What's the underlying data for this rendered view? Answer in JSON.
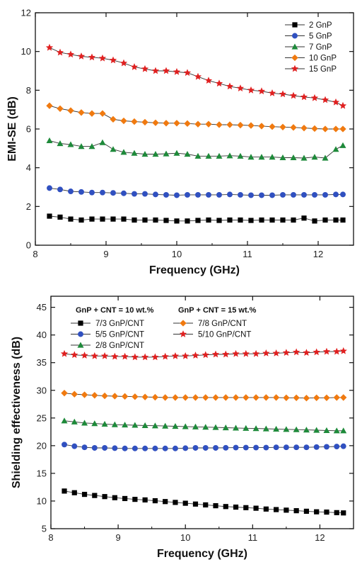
{
  "chart_data": [
    {
      "type": "line",
      "title": "",
      "xlabel": "Frequency (GHz)",
      "ylabel": "EMI-SE (dB)",
      "xlim": [
        8,
        12.5
      ],
      "ylim": [
        0,
        12
      ],
      "x_ticks": [
        "8",
        "9",
        "10",
        "11",
        "12"
      ],
      "y_ticks": [
        "0",
        "2",
        "4",
        "6",
        "8",
        "10",
        "12"
      ],
      "legend_position": "top-right",
      "grid": false,
      "x": [
        8.2,
        8.35,
        8.5,
        8.65,
        8.8,
        8.95,
        9.1,
        9.25,
        9.4,
        9.55,
        9.7,
        9.85,
        10.0,
        10.15,
        10.3,
        10.45,
        10.6,
        10.75,
        10.9,
        11.05,
        11.2,
        11.35,
        11.5,
        11.65,
        11.8,
        11.95,
        12.1,
        12.25,
        12.35
      ],
      "series": [
        {
          "name": "2 GnP",
          "marker": "square",
          "color": "#000000",
          "values": [
            1.5,
            1.45,
            1.35,
            1.3,
            1.35,
            1.35,
            1.35,
            1.35,
            1.3,
            1.3,
            1.3,
            1.28,
            1.25,
            1.25,
            1.28,
            1.3,
            1.28,
            1.3,
            1.3,
            1.28,
            1.3,
            1.3,
            1.3,
            1.3,
            1.4,
            1.25,
            1.3,
            1.3,
            1.3
          ]
        },
        {
          "name": "5 GnP",
          "marker": "circle",
          "color": "#3050c0",
          "values": [
            2.95,
            2.88,
            2.78,
            2.75,
            2.72,
            2.72,
            2.7,
            2.68,
            2.65,
            2.65,
            2.62,
            2.6,
            2.58,
            2.6,
            2.6,
            2.6,
            2.6,
            2.62,
            2.6,
            2.58,
            2.58,
            2.58,
            2.6,
            2.6,
            2.6,
            2.6,
            2.6,
            2.62,
            2.62
          ]
        },
        {
          "name": "7 GnP",
          "marker": "triangle",
          "color": "#1e8a3a",
          "values": [
            5.4,
            5.25,
            5.2,
            5.1,
            5.1,
            5.3,
            4.95,
            4.8,
            4.75,
            4.7,
            4.7,
            4.72,
            4.75,
            4.7,
            4.6,
            4.6,
            4.6,
            4.62,
            4.6,
            4.55,
            4.55,
            4.55,
            4.52,
            4.52,
            4.5,
            4.55,
            4.5,
            4.95,
            5.15
          ]
        },
        {
          "name": "10 GnP",
          "marker": "diamond",
          "color": "#f07a10",
          "values": [
            7.2,
            7.05,
            6.95,
            6.85,
            6.8,
            6.8,
            6.5,
            6.42,
            6.38,
            6.35,
            6.32,
            6.3,
            6.3,
            6.28,
            6.25,
            6.25,
            6.22,
            6.22,
            6.2,
            6.18,
            6.15,
            6.12,
            6.1,
            6.08,
            6.05,
            6.02,
            6.0,
            6.0,
            6.0
          ]
        },
        {
          "name": "15 GnP",
          "marker": "star",
          "color": "#e02020",
          "values": [
            10.2,
            9.95,
            9.85,
            9.75,
            9.7,
            9.65,
            9.55,
            9.4,
            9.2,
            9.1,
            9.0,
            9.0,
            8.95,
            8.9,
            8.7,
            8.5,
            8.35,
            8.2,
            8.1,
            8.0,
            7.95,
            7.85,
            7.8,
            7.72,
            7.65,
            7.6,
            7.5,
            7.38,
            7.2
          ]
        }
      ]
    },
    {
      "type": "line",
      "title": "",
      "xlabel": "Frequency (GHz)",
      "ylabel": "Shielding effectiveness (dB)",
      "xlim": [
        8,
        12.5
      ],
      "ylim": [
        5,
        47
      ],
      "x_ticks": [
        "8",
        "9",
        "10",
        "11",
        "12"
      ],
      "y_ticks": [
        "5",
        "10",
        "15",
        "20",
        "25",
        "30",
        "35",
        "40",
        "45"
      ],
      "legend_position": "top",
      "grid": false,
      "legend_groups": [
        {
          "title": "GnP + CNT = 10 wt.%",
          "series": [
            "7/3 GnP/CNT",
            "5/5 GnP/CNT",
            "2/8 GnP/CNT"
          ]
        },
        {
          "title": "GnP + CNT = 15 wt.%",
          "series": [
            "7/8 GnP/CNT",
            "5/10 GnP/CNT"
          ]
        }
      ],
      "x": [
        8.2,
        8.35,
        8.5,
        8.65,
        8.8,
        8.95,
        9.1,
        9.25,
        9.4,
        9.55,
        9.7,
        9.85,
        10.0,
        10.15,
        10.3,
        10.45,
        10.6,
        10.75,
        10.9,
        11.05,
        11.2,
        11.35,
        11.5,
        11.65,
        11.8,
        11.95,
        12.1,
        12.25,
        12.35
      ],
      "series": [
        {
          "name": "7/3 GnP/CNT",
          "marker": "square",
          "color": "#000000",
          "values": [
            11.8,
            11.5,
            11.2,
            11.0,
            10.8,
            10.6,
            10.45,
            10.3,
            10.2,
            10.05,
            9.9,
            9.75,
            9.6,
            9.45,
            9.3,
            9.15,
            9.0,
            8.9,
            8.8,
            8.7,
            8.55,
            8.45,
            8.35,
            8.25,
            8.15,
            8.05,
            8.0,
            7.9,
            7.85
          ]
        },
        {
          "name": "5/5 GnP/CNT",
          "marker": "circle",
          "color": "#3050c0",
          "values": [
            20.2,
            19.9,
            19.7,
            19.6,
            19.6,
            19.55,
            19.5,
            19.5,
            19.5,
            19.5,
            19.5,
            19.5,
            19.55,
            19.6,
            19.6,
            19.6,
            19.62,
            19.65,
            19.65,
            19.65,
            19.65,
            19.7,
            19.7,
            19.7,
            19.7,
            19.75,
            19.8,
            19.85,
            19.9
          ]
        },
        {
          "name": "2/8 GnP/CNT",
          "marker": "triangle",
          "color": "#1e8a3a",
          "values": [
            24.5,
            24.3,
            24.1,
            24.0,
            23.9,
            23.8,
            23.75,
            23.7,
            23.65,
            23.6,
            23.55,
            23.5,
            23.45,
            23.4,
            23.35,
            23.3,
            23.25,
            23.2,
            23.15,
            23.1,
            23.05,
            23.0,
            22.95,
            22.9,
            22.85,
            22.8,
            22.75,
            22.7,
            22.7
          ]
        },
        {
          "name": "7/8 GnP/CNT",
          "marker": "diamond",
          "color": "#f07a10",
          "values": [
            29.5,
            29.3,
            29.2,
            29.1,
            29.0,
            28.95,
            28.9,
            28.85,
            28.8,
            28.75,
            28.7,
            28.7,
            28.7,
            28.7,
            28.7,
            28.7,
            28.7,
            28.7,
            28.7,
            28.7,
            28.7,
            28.7,
            28.65,
            28.65,
            28.6,
            28.65,
            28.65,
            28.7,
            28.7
          ]
        },
        {
          "name": "5/10 GnP/CNT",
          "marker": "star",
          "color": "#e02020",
          "values": [
            36.6,
            36.4,
            36.3,
            36.2,
            36.2,
            36.1,
            36.1,
            36.0,
            36.0,
            36.0,
            36.1,
            36.2,
            36.2,
            36.3,
            36.4,
            36.5,
            36.5,
            36.6,
            36.6,
            36.6,
            36.7,
            36.7,
            36.8,
            36.9,
            36.8,
            36.9,
            37.0,
            37.0,
            37.1
          ]
        }
      ]
    }
  ]
}
